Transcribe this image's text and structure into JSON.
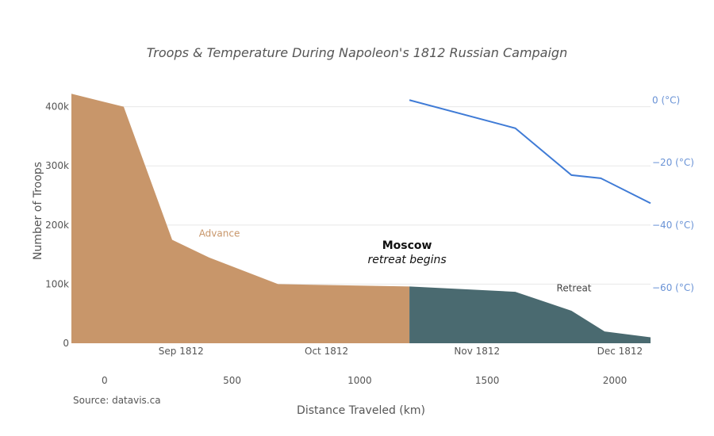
{
  "chart_data": {
    "type": "area",
    "title": "Troops & Temperature During Napoleon's 1812 Russian Campaign",
    "xlabel": "Distance Traveled (km)",
    "ylabel": "Number of Troops",
    "source": "Source: datavis.ca",
    "x_range": [
      -130,
      2140
    ],
    "y_range": [
      0,
      425000
    ],
    "y2_range": [
      -77.8,
      2.6
    ],
    "x_ticks": [
      0,
      500,
      1000,
      1500,
      2000
    ],
    "x_tick_labels": [
      "0",
      "500",
      "1000",
      "1500",
      "2000"
    ],
    "y_ticks": [
      0,
      100000,
      200000,
      300000,
      400000
    ],
    "y_tick_labels": [
      "0",
      "100k",
      "200k",
      "300k",
      "400k"
    ],
    "y2_ticks": [
      0,
      -20,
      -40,
      -60
    ],
    "y2_tick_labels": [
      "0 (°C)",
      "−20 (°C)",
      "−40 (°C)",
      "−60 (°C)"
    ],
    "date_ticks": [
      {
        "label": "Sep 1812",
        "x": 300
      },
      {
        "label": "Oct 1812",
        "x": 870
      },
      {
        "label": "Nov 1812",
        "x": 1460
      },
      {
        "label": "Dec 1812",
        "x": 2020
      }
    ],
    "grid": true,
    "series": [
      {
        "name": "Advance",
        "type": "area",
        "color": "#c8966a",
        "x": [
          -130,
          75,
          265,
          410,
          680,
          1195
        ],
        "y": [
          422000,
          400000,
          175000,
          145000,
          100000,
          96000
        ]
      },
      {
        "name": "Retreat",
        "type": "area",
        "color": "#4a6a70",
        "x": [
          1195,
          1610,
          1830,
          1960,
          2140
        ],
        "y": [
          96000,
          87000,
          55000,
          20000,
          10000
        ]
      },
      {
        "name": "",
        "type": "line",
        "axis": "right",
        "color": "#3f7bd6",
        "x": [
          1195,
          1610,
          1830,
          1945,
          2140
        ],
        "y": [
          0,
          -9,
          -24,
          -25,
          -33
        ]
      }
    ],
    "annotations": [
      {
        "text": "Advance",
        "x": 450,
        "y": 180000,
        "color": "#c8966a"
      },
      {
        "text": "Retreat",
        "x": 1840,
        "y": 88000,
        "color": "#444444"
      },
      {
        "text": "Moscow",
        "sub": "retreat begins",
        "x": 1195,
        "y": 160000
      }
    ]
  }
}
